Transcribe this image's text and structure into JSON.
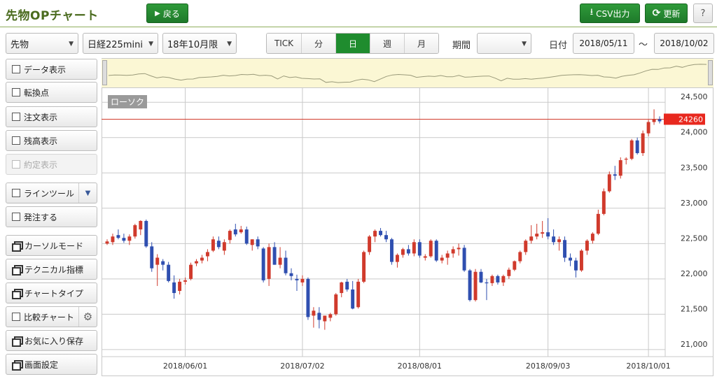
{
  "header": {
    "title": "先物OPチャート",
    "back_label": "戻る",
    "csv_label": "CSV出力",
    "refresh_label": "更新",
    "help_label": "?"
  },
  "toolbar": {
    "market": "先物",
    "product": "日経225mini",
    "contract_month": "18年10月限",
    "intervals": [
      "TICK",
      "分",
      "日",
      "週",
      "月"
    ],
    "active_interval": "日",
    "period_label": "期間",
    "period_value": "",
    "date_label": "日付",
    "date_from": "2018/05/11",
    "date_separator": "～",
    "date_to": "2018/10/02"
  },
  "sidebar": {
    "items": [
      {
        "label": "データ表示",
        "kind": "checkbox"
      },
      {
        "label": "転換点",
        "kind": "checkbox"
      },
      {
        "label": "注文表示",
        "kind": "checkbox"
      },
      {
        "label": "残高表示",
        "kind": "checkbox"
      },
      {
        "label": "約定表示",
        "kind": "checkbox-disabled"
      },
      {
        "label": "ラインツール",
        "kind": "checkbox-dropdown"
      },
      {
        "label": "発注する",
        "kind": "checkbox"
      },
      {
        "label": "カーソルモード",
        "kind": "window"
      },
      {
        "label": "テクニカル指標",
        "kind": "window"
      },
      {
        "label": "チャートタイプ",
        "kind": "window"
      },
      {
        "label": "比較チャート",
        "kind": "checkbox-gear"
      },
      {
        "label": "お気に入り保存",
        "kind": "window"
      },
      {
        "label": "画面設定",
        "kind": "window"
      }
    ]
  },
  "chart_data": {
    "type": "candlestick",
    "series_label": "ローソク",
    "current_price": 24260,
    "ylim": [
      20900,
      24700
    ],
    "y_ticks": [
      21000,
      21500,
      22000,
      22500,
      23000,
      23500,
      24000,
      24500
    ],
    "y_tick_labels": [
      "21,000",
      "21,500",
      "22,000",
      "22,500",
      "23,000",
      "23,500",
      "24,000",
      "24,500"
    ],
    "x_ticks": [
      {
        "index": 14,
        "label": "2018/06/01"
      },
      {
        "index": 35,
        "label": "2018/07/02"
      },
      {
        "index": 56,
        "label": "2018/08/01"
      },
      {
        "index": 79,
        "label": "2018/09/03"
      },
      {
        "index": 97,
        "label": "2018/10/01"
      }
    ],
    "up_color": "#d03a2c",
    "down_color": "#2f4fb0",
    "grid": true,
    "candles": [
      {
        "o": 22500,
        "h": 22560,
        "l": 22480,
        "c": 22530
      },
      {
        "o": 22520,
        "h": 22640,
        "l": 22480,
        "c": 22600
      },
      {
        "o": 22620,
        "h": 22700,
        "l": 22560,
        "c": 22580
      },
      {
        "o": 22580,
        "h": 22640,
        "l": 22510,
        "c": 22540
      },
      {
        "o": 22540,
        "h": 22630,
        "l": 22480,
        "c": 22600
      },
      {
        "o": 22600,
        "h": 22780,
        "l": 22570,
        "c": 22760
      },
      {
        "o": 22700,
        "h": 22830,
        "l": 22620,
        "c": 22820
      },
      {
        "o": 22820,
        "h": 22840,
        "l": 22440,
        "c": 22460
      },
      {
        "o": 22460,
        "h": 22520,
        "l": 22100,
        "c": 22150
      },
      {
        "o": 22200,
        "h": 22350,
        "l": 21900,
        "c": 22300
      },
      {
        "o": 22250,
        "h": 22280,
        "l": 22120,
        "c": 22200
      },
      {
        "o": 22200,
        "h": 22240,
        "l": 21950,
        "c": 21970
      },
      {
        "o": 21950,
        "h": 22050,
        "l": 21720,
        "c": 21800
      },
      {
        "o": 21830,
        "h": 22000,
        "l": 21780,
        "c": 21960
      },
      {
        "o": 21960,
        "h": 22020,
        "l": 21920,
        "c": 21980
      },
      {
        "o": 22000,
        "h": 22230,
        "l": 21980,
        "c": 22200
      },
      {
        "o": 22220,
        "h": 22280,
        "l": 22180,
        "c": 22250
      },
      {
        "o": 22260,
        "h": 22340,
        "l": 22220,
        "c": 22300
      },
      {
        "o": 22320,
        "h": 22420,
        "l": 22250,
        "c": 22380
      },
      {
        "o": 22400,
        "h": 22600,
        "l": 22380,
        "c": 22560
      },
      {
        "o": 22540,
        "h": 22600,
        "l": 22420,
        "c": 22450
      },
      {
        "o": 22400,
        "h": 22560,
        "l": 22340,
        "c": 22520
      },
      {
        "o": 22550,
        "h": 22700,
        "l": 22500,
        "c": 22680
      },
      {
        "o": 22700,
        "h": 22780,
        "l": 22600,
        "c": 22630
      },
      {
        "o": 22660,
        "h": 22750,
        "l": 22640,
        "c": 22700
      },
      {
        "o": 22700,
        "h": 22740,
        "l": 22480,
        "c": 22500
      },
      {
        "o": 22480,
        "h": 22560,
        "l": 22400,
        "c": 22560
      },
      {
        "o": 22560,
        "h": 22600,
        "l": 22420,
        "c": 22460
      },
      {
        "o": 22430,
        "h": 22450,
        "l": 21950,
        "c": 21980
      },
      {
        "o": 22000,
        "h": 22500,
        "l": 21900,
        "c": 22450
      },
      {
        "o": 22450,
        "h": 22520,
        "l": 22200,
        "c": 22200
      },
      {
        "o": 22200,
        "h": 22450,
        "l": 22150,
        "c": 22300
      },
      {
        "o": 22300,
        "h": 22400,
        "l": 22050,
        "c": 22080
      },
      {
        "o": 22080,
        "h": 22150,
        "l": 21980,
        "c": 22040
      },
      {
        "o": 22000,
        "h": 22060,
        "l": 21830,
        "c": 21980
      },
      {
        "o": 21950,
        "h": 22050,
        "l": 21900,
        "c": 22000
      },
      {
        "o": 22000,
        "h": 22020,
        "l": 21420,
        "c": 21460
      },
      {
        "o": 21480,
        "h": 21600,
        "l": 21310,
        "c": 21550
      },
      {
        "o": 21520,
        "h": 21600,
        "l": 21300,
        "c": 21420
      },
      {
        "o": 21400,
        "h": 21480,
        "l": 21280,
        "c": 21480
      },
      {
        "o": 21450,
        "h": 21520,
        "l": 21400,
        "c": 21500
      },
      {
        "o": 21500,
        "h": 21800,
        "l": 21480,
        "c": 21780
      },
      {
        "o": 21800,
        "h": 21960,
        "l": 21740,
        "c": 21950
      },
      {
        "o": 21960,
        "h": 22000,
        "l": 21820,
        "c": 21850
      },
      {
        "o": 21850,
        "h": 21970,
        "l": 21570,
        "c": 21580
      },
      {
        "o": 21600,
        "h": 22000,
        "l": 21580,
        "c": 21960
      },
      {
        "o": 21960,
        "h": 22400,
        "l": 21940,
        "c": 22380
      },
      {
        "o": 22380,
        "h": 22620,
        "l": 22340,
        "c": 22600
      },
      {
        "o": 22600,
        "h": 22700,
        "l": 22520,
        "c": 22680
      },
      {
        "o": 22680,
        "h": 22720,
        "l": 22600,
        "c": 22620
      },
      {
        "o": 22620,
        "h": 22680,
        "l": 22520,
        "c": 22560
      },
      {
        "o": 22560,
        "h": 22580,
        "l": 22200,
        "c": 22240
      },
      {
        "o": 22240,
        "h": 22360,
        "l": 22160,
        "c": 22340
      },
      {
        "o": 22340,
        "h": 22440,
        "l": 22300,
        "c": 22420
      },
      {
        "o": 22420,
        "h": 22480,
        "l": 22330,
        "c": 22360
      },
      {
        "o": 22360,
        "h": 22560,
        "l": 22320,
        "c": 22520
      },
      {
        "o": 22520,
        "h": 22560,
        "l": 22300,
        "c": 22330
      },
      {
        "o": 22300,
        "h": 22350,
        "l": 22260,
        "c": 22320
      },
      {
        "o": 22320,
        "h": 22560,
        "l": 22300,
        "c": 22540
      },
      {
        "o": 22540,
        "h": 22560,
        "l": 22240,
        "c": 22260
      },
      {
        "o": 22260,
        "h": 22340,
        "l": 22220,
        "c": 22300
      },
      {
        "o": 22300,
        "h": 22400,
        "l": 22200,
        "c": 22360
      },
      {
        "o": 22360,
        "h": 22460,
        "l": 22300,
        "c": 22420
      },
      {
        "o": 22420,
        "h": 22500,
        "l": 22330,
        "c": 22440
      },
      {
        "o": 22440,
        "h": 22480,
        "l": 22100,
        "c": 22120
      },
      {
        "o": 22120,
        "h": 22140,
        "l": 21680,
        "c": 21700
      },
      {
        "o": 21700,
        "h": 22140,
        "l": 21680,
        "c": 22100
      },
      {
        "o": 22100,
        "h": 22140,
        "l": 21940,
        "c": 21950
      },
      {
        "o": 21950,
        "h": 22000,
        "l": 21700,
        "c": 21940
      },
      {
        "o": 21940,
        "h": 22060,
        "l": 21900,
        "c": 22040
      },
      {
        "o": 22040,
        "h": 22060,
        "l": 21920,
        "c": 21950
      },
      {
        "o": 21950,
        "h": 22060,
        "l": 21900,
        "c": 22040
      },
      {
        "o": 22040,
        "h": 22160,
        "l": 22000,
        "c": 22130
      },
      {
        "o": 22130,
        "h": 22260,
        "l": 22110,
        "c": 22250
      },
      {
        "o": 22250,
        "h": 22400,
        "l": 22220,
        "c": 22380
      },
      {
        "o": 22380,
        "h": 22560,
        "l": 22340,
        "c": 22540
      },
      {
        "o": 22540,
        "h": 22760,
        "l": 22500,
        "c": 22600
      },
      {
        "o": 22600,
        "h": 22780,
        "l": 22560,
        "c": 22640
      },
      {
        "o": 22640,
        "h": 22820,
        "l": 22580,
        "c": 22660
      },
      {
        "o": 22660,
        "h": 22860,
        "l": 22560,
        "c": 22600
      },
      {
        "o": 22600,
        "h": 22700,
        "l": 22480,
        "c": 22520
      },
      {
        "o": 22520,
        "h": 22600,
        "l": 22400,
        "c": 22560
      },
      {
        "o": 22550,
        "h": 22600,
        "l": 22240,
        "c": 22300
      },
      {
        "o": 22300,
        "h": 22360,
        "l": 22180,
        "c": 22260
      },
      {
        "o": 22260,
        "h": 22300,
        "l": 22020,
        "c": 22120
      },
      {
        "o": 22120,
        "h": 22420,
        "l": 22100,
        "c": 22400
      },
      {
        "o": 22400,
        "h": 22560,
        "l": 22340,
        "c": 22540
      },
      {
        "o": 22540,
        "h": 22660,
        "l": 22500,
        "c": 22640
      },
      {
        "o": 22640,
        "h": 22980,
        "l": 22620,
        "c": 22920
      },
      {
        "o": 22920,
        "h": 23280,
        "l": 22900,
        "c": 23240
      },
      {
        "o": 23240,
        "h": 23520,
        "l": 23220,
        "c": 23480
      },
      {
        "o": 23480,
        "h": 23600,
        "l": 23400,
        "c": 23460
      },
      {
        "o": 23460,
        "h": 23720,
        "l": 23420,
        "c": 23680
      },
      {
        "o": 23700,
        "h": 23720,
        "l": 23620,
        "c": 23700
      },
      {
        "o": 23700,
        "h": 23980,
        "l": 23680,
        "c": 23960
      },
      {
        "o": 23960,
        "h": 24000,
        "l": 23760,
        "c": 23780
      },
      {
        "o": 23780,
        "h": 24100,
        "l": 23740,
        "c": 24060
      },
      {
        "o": 24060,
        "h": 24250,
        "l": 24020,
        "c": 24220
      },
      {
        "o": 24220,
        "h": 24400,
        "l": 24180,
        "c": 24260
      },
      {
        "o": 24260,
        "h": 24300,
        "l": 24200,
        "c": 24230
      }
    ]
  }
}
